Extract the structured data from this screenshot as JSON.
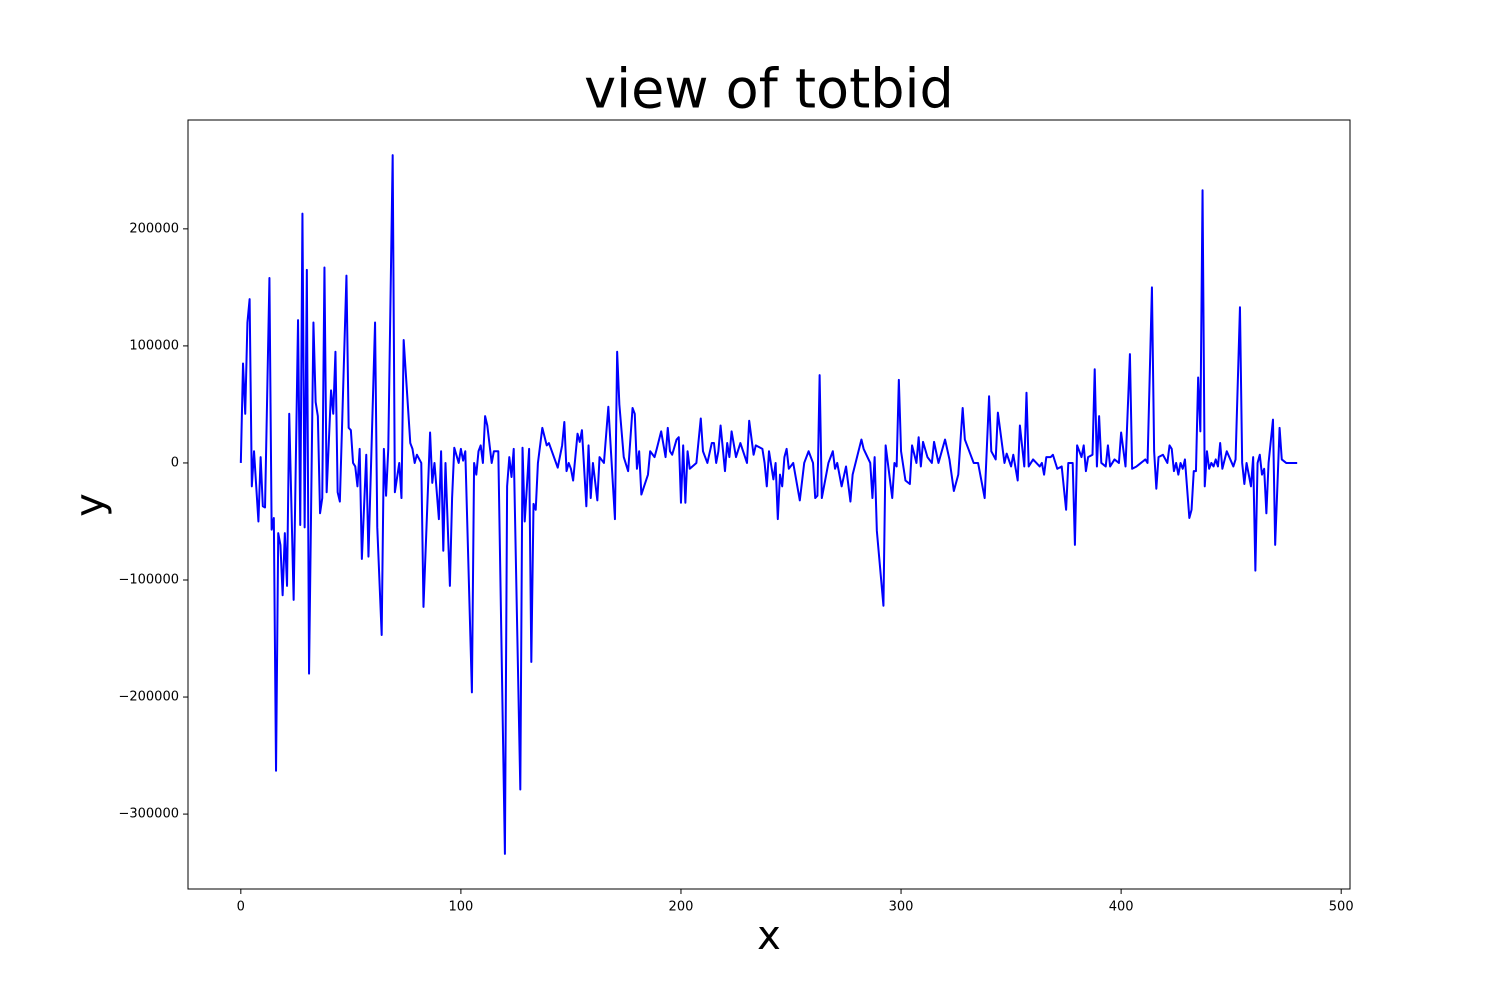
{
  "chart_data": {
    "type": "line",
    "title": "view of totbid",
    "x_label": "x",
    "y_label": "y",
    "x": [
      0,
      1,
      2,
      3,
      4,
      5,
      6,
      8,
      9,
      10,
      11,
      13,
      14,
      15,
      16,
      17,
      18,
      19,
      20,
      21,
      22,
      24,
      26,
      27,
      28,
      29,
      30,
      31,
      33,
      34,
      35,
      36,
      37,
      38,
      39,
      41,
      42,
      43,
      44,
      45,
      48,
      49,
      50,
      51,
      52,
      53,
      54,
      55,
      57,
      58,
      61,
      62,
      64,
      65,
      66,
      67,
      69,
      70,
      72,
      73,
      74,
      77,
      78,
      79,
      80,
      82,
      83,
      86,
      87,
      88,
      90,
      91,
      92,
      93,
      95,
      96,
      97,
      99,
      100,
      101,
      102,
      105,
      106,
      107,
      108,
      109,
      110,
      111,
      112,
      114,
      115,
      117,
      120,
      121,
      122,
      123,
      124,
      127,
      128,
      129,
      130,
      131,
      132,
      133,
      134,
      135,
      137,
      139,
      140,
      144,
      146,
      147,
      148,
      149,
      150,
      151,
      153,
      154,
      155,
      157,
      158,
      159,
      160,
      162,
      163,
      165,
      167,
      170,
      171,
      172,
      174,
      176,
      178,
      179,
      180,
      181,
      182,
      185,
      186,
      188,
      189,
      191,
      193,
      194,
      195,
      196,
      198,
      199,
      200,
      201,
      202,
      203,
      204,
      207,
      209,
      210,
      212,
      214,
      215,
      216,
      217,
      218,
      220,
      221,
      222,
      223,
      225,
      227,
      230,
      231,
      233,
      234,
      237,
      238,
      239,
      240,
      242,
      243,
      244,
      245,
      246,
      247,
      248,
      249,
      251,
      254,
      256,
      258,
      260,
      261,
      262,
      263,
      264,
      267,
      269,
      270,
      271,
      273,
      275,
      277,
      278,
      282,
      283,
      286,
      287,
      288,
      289,
      292,
      293,
      296,
      297,
      298,
      299,
      300,
      302,
      304,
      305,
      307,
      308,
      309,
      310,
      312,
      314,
      315,
      317,
      320,
      322,
      324,
      326,
      328,
      329,
      333,
      335,
      338,
      340,
      341,
      343,
      344,
      347,
      348,
      350,
      351,
      353,
      354,
      356,
      357,
      358,
      360,
      363,
      364,
      365,
      366,
      368,
      369,
      371,
      373,
      375,
      376,
      378,
      379,
      380,
      382,
      383,
      384,
      385,
      387,
      388,
      389,
      390,
      391,
      393,
      394,
      395,
      397,
      399,
      400,
      402,
      404,
      405,
      407,
      409,
      411,
      412,
      414,
      415,
      416,
      417,
      419,
      421,
      422,
      423,
      424,
      425,
      426,
      427,
      428,
      429,
      431,
      432,
      433,
      434,
      435,
      436,
      437,
      438,
      439,
      440,
      441,
      442,
      443,
      444,
      445,
      446,
      448,
      451,
      452,
      454,
      455,
      456,
      457,
      459,
      460,
      461,
      462,
      463,
      464,
      465,
      466,
      467,
      469,
      470,
      471,
      472,
      473,
      475,
      476,
      480
    ],
    "series": [
      {
        "color": "#0000ff",
        "values": [
          0,
          85000,
          42000,
          120000,
          140000,
          -20000,
          10000,
          -50000,
          5000,
          -37000,
          -38000,
          158000,
          -57000,
          -47000,
          -263000,
          -60000,
          -70000,
          -113000,
          -60000,
          -105000,
          42000,
          -117000,
          122000,
          -53000,
          213000,
          -55000,
          165000,
          -180000,
          120000,
          52000,
          40000,
          -43000,
          -30000,
          167000,
          -25000,
          62000,
          42000,
          95000,
          -25000,
          -33000,
          160000,
          30000,
          28000,
          0,
          -3000,
          -20000,
          12000,
          -82000,
          7000,
          -80000,
          120000,
          -55000,
          -147000,
          12000,
          -28000,
          12000,
          263000,
          -25000,
          0,
          -30000,
          105000,
          17000,
          12000,
          0,
          7000,
          0,
          -123000,
          26000,
          -17000,
          0,
          -48000,
          10000,
          -75000,
          0,
          -105000,
          -30000,
          13000,
          0,
          12000,
          2000,
          10000,
          -196000,
          0,
          -10000,
          10000,
          15000,
          0,
          40000,
          32000,
          0,
          10000,
          10000,
          -334000,
          -20000,
          5000,
          -12000,
          12000,
          -279000,
          13000,
          -50000,
          -20000,
          12000,
          -170000,
          -35000,
          -40000,
          0,
          30000,
          15000,
          17000,
          -4000,
          15000,
          35000,
          -7000,
          0,
          -5000,
          -15000,
          25000,
          18000,
          28000,
          -37000,
          15000,
          -30000,
          0,
          -32000,
          5000,
          0,
          48000,
          -48000,
          95000,
          50000,
          5000,
          -7000,
          47000,
          42000,
          -5000,
          10000,
          -27000,
          -10000,
          10000,
          5000,
          12000,
          27000,
          5000,
          30000,
          10000,
          7000,
          20000,
          22000,
          -34000,
          15000,
          -34000,
          10000,
          -5000,
          0,
          38000,
          10000,
          0,
          17000,
          17000,
          0,
          10000,
          32000,
          -7000,
          17000,
          5000,
          27000,
          5000,
          17000,
          0,
          36000,
          7000,
          15000,
          12000,
          0,
          -20000,
          10000,
          -14000,
          0,
          -48000,
          -10000,
          -20000,
          5000,
          12000,
          -5000,
          0,
          -32000,
          0,
          10000,
          0,
          -30000,
          -28000,
          75000,
          -30000,
          0,
          10000,
          -5000,
          0,
          -20000,
          -3000,
          -33000,
          -10000,
          20000,
          12000,
          0,
          -30000,
          5000,
          -58000,
          -122000,
          15000,
          -30000,
          0,
          -3000,
          71000,
          10000,
          -15000,
          -18000,
          15000,
          0,
          22000,
          -3000,
          18000,
          5000,
          0,
          18000,
          0,
          20000,
          3000,
          -24000,
          -10000,
          47000,
          20000,
          0,
          0,
          -30000,
          57000,
          10000,
          3000,
          43000,
          0,
          8000,
          -3000,
          7000,
          -15000,
          32000,
          -3000,
          60000,
          -3000,
          3000,
          -3000,
          0,
          -10000,
          5000,
          5000,
          7000,
          -5000,
          -3000,
          -40000,
          0,
          0,
          -70000,
          15000,
          5000,
          15000,
          -7000,
          5000,
          7000,
          80000,
          -3000,
          40000,
          0,
          -3000,
          15000,
          -3000,
          3000,
          0,
          26000,
          -3000,
          93000,
          -5000,
          -3000,
          0,
          3000,
          0,
          150000,
          10000,
          -22000,
          5000,
          7000,
          0,
          15000,
          12000,
          -7000,
          0,
          -10000,
          0,
          -5000,
          3000,
          -47000,
          -40000,
          -7000,
          -7000,
          73000,
          27000,
          233000,
          -20000,
          10000,
          -5000,
          0,
          -3000,
          3000,
          -3000,
          17000,
          -5000,
          10000,
          -3000,
          3000,
          133000,
          0,
          -18000,
          0,
          -20000,
          5000,
          -92000,
          0,
          7000,
          -10000,
          -5000,
          -43000,
          0,
          37000,
          -70000,
          -20000,
          30000,
          3000,
          0,
          0,
          0
        ]
      }
    ],
    "xlim": [
      -24,
      504
    ],
    "xticks": [
      0,
      100,
      200,
      300,
      400,
      500
    ],
    "ylim": [
      -364000,
      293000
    ],
    "yticks": [
      {
        "value": -300000,
        "label": "−300000"
      },
      {
        "value": -200000,
        "label": "−200000"
      },
      {
        "value": -100000,
        "label": "−100000"
      },
      0,
      100000,
      200000
    ]
  }
}
